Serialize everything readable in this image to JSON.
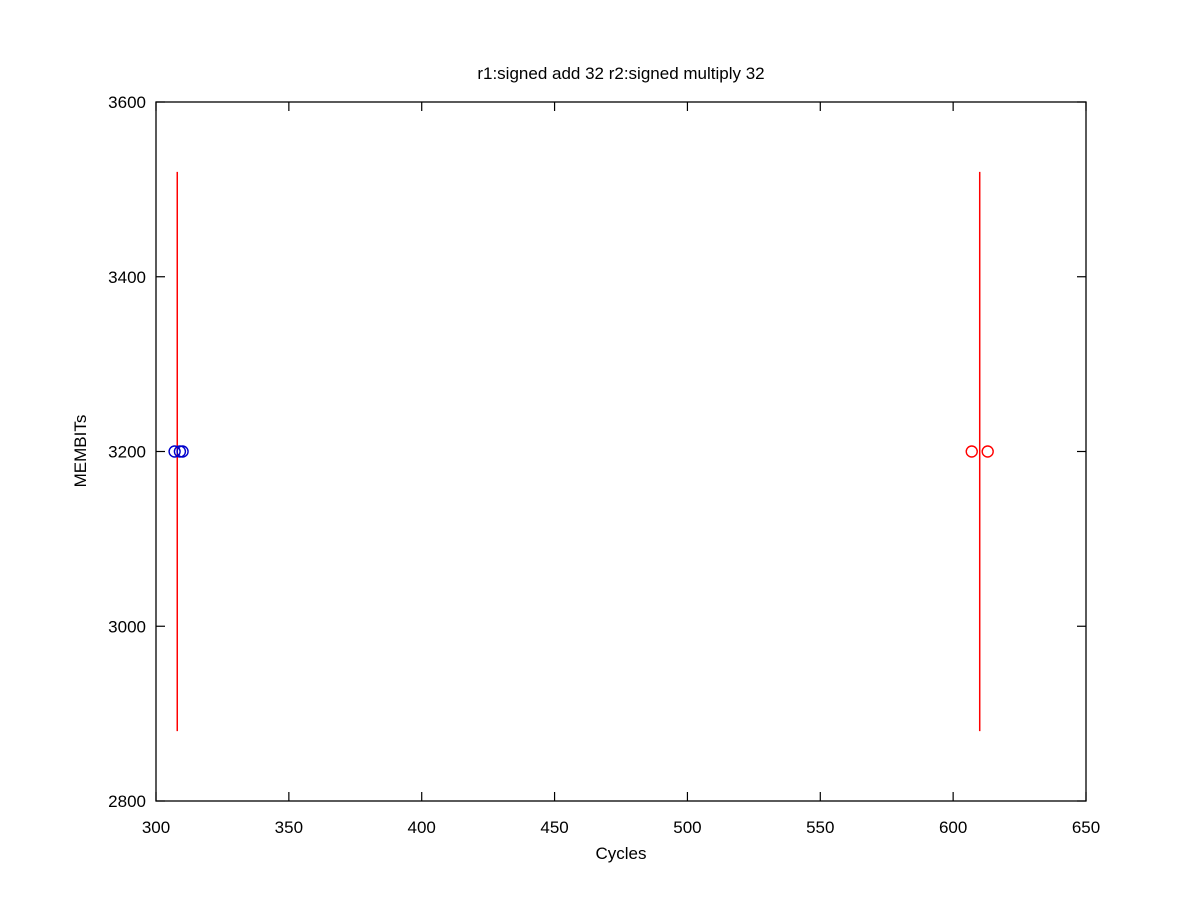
{
  "chart_data": {
    "type": "scatter",
    "title": "r1:signed add 32 r2:signed multiply 32",
    "xlabel": "Cycles",
    "ylabel": "MEMBITs",
    "xlim": [
      300,
      650
    ],
    "ylim": [
      2800,
      3600
    ],
    "xticks": [
      300,
      350,
      400,
      450,
      500,
      550,
      600,
      650
    ],
    "yticks": [
      2800,
      3000,
      3200,
      3400,
      3600
    ],
    "grid": false,
    "series": [
      {
        "color": "#0000cc",
        "marker": "circle",
        "points": [
          [
            307,
            3200
          ],
          [
            309,
            3200
          ],
          [
            310,
            3200
          ]
        ]
      },
      {
        "color": "#ff0000",
        "marker": "circle",
        "points": [
          [
            607,
            3200
          ],
          [
            613,
            3200
          ]
        ]
      }
    ],
    "vertical_lines": [
      {
        "x": 308,
        "y": [
          2880,
          3520
        ],
        "color": "#ff0000"
      },
      {
        "x": 610,
        "y": [
          2880,
          3520
        ],
        "color": "#ff0000"
      }
    ]
  }
}
